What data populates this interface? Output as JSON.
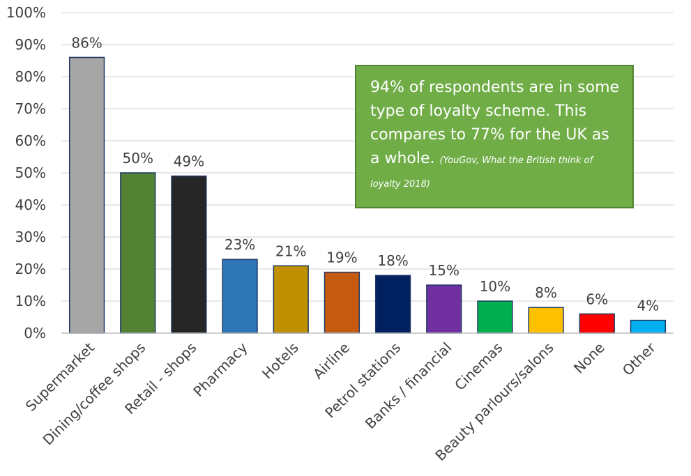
{
  "chart_data": {
    "type": "bar",
    "title": "",
    "xlabel": "",
    "ylabel": "",
    "ylim": [
      0,
      100
    ],
    "y_ticks": [
      "0%",
      "10%",
      "20%",
      "30%",
      "40%",
      "50%",
      "60%",
      "70%",
      "80%",
      "90%",
      "100%"
    ],
    "grid": true,
    "legend": "none",
    "categories": [
      "Supermarket",
      "Dining/coffee shops",
      "Retail - shops",
      "Pharmacy",
      "Hotels",
      "Airline",
      "Petrol stations",
      "Banks / financial",
      "Cinemas",
      "Beauty parlours/salons",
      "None",
      "Other"
    ],
    "values": [
      86,
      50,
      49,
      23,
      21,
      19,
      18,
      15,
      10,
      8,
      6,
      4
    ],
    "data_labels": [
      "86%",
      "50%",
      "49%",
      "23%",
      "21%",
      "19%",
      "18%",
      "15%",
      "10%",
      "8%",
      "6%",
      "4%"
    ],
    "bar_colors": [
      "#a6a6a6",
      "#548235",
      "#262626",
      "#2e75b6",
      "#bf9000",
      "#c55a11",
      "#002060",
      "#7030a0",
      "#00b050",
      "#ffc000",
      "#ff0000",
      "#00b0f0"
    ],
    "bar_outline": "#1f3864",
    "annotation": {
      "text": "94% of respondents are in some type of loyalty scheme. This compares to 77% for the UK as a whole.",
      "citation": "(YouGov, What the British think of  loyalty 2018)",
      "background": "#70ad47"
    }
  }
}
